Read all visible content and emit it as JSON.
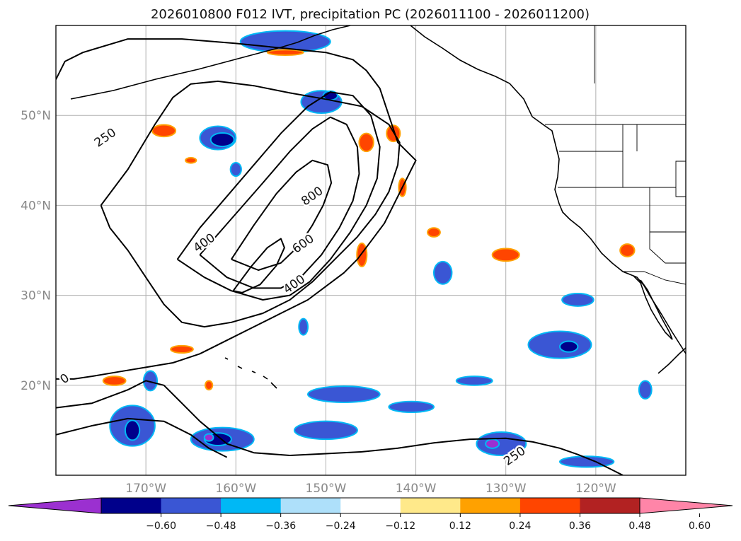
{
  "title": "2026010800 F012 IVT, precipitation PC (2026011100 - 2026011200)",
  "chart_data": {
    "type": "contour_map",
    "title": "2026010800 F012 IVT, precipitation PC (2026011100 - 2026011200)",
    "xlim": [
      -180,
      -110
    ],
    "ylim": [
      10,
      60
    ],
    "x_ticks": [
      {
        "lon": -170,
        "label": "170°W"
      },
      {
        "lon": -160,
        "label": "160°W"
      },
      {
        "lon": -150,
        "label": "150°W"
      },
      {
        "lon": -140,
        "label": "140°W"
      },
      {
        "lon": -130,
        "label": "130°W"
      },
      {
        "lon": -120,
        "label": "120°W"
      }
    ],
    "y_ticks": [
      {
        "lat": 20,
        "label": "20°N"
      },
      {
        "lat": 30,
        "label": "30°N"
      },
      {
        "lat": 40,
        "label": "40°N"
      },
      {
        "lat": 50,
        "label": "50°N"
      }
    ],
    "grid": true,
    "ivt_contour_levels": [
      250,
      400,
      600,
      800
    ],
    "ivt_contour_labels": [
      {
        "text": "250",
        "lon": -174.5,
        "lat": 47.5
      },
      {
        "text": "400",
        "lon": -163.5,
        "lat": 35.8
      },
      {
        "text": "600",
        "lon": -152.5,
        "lat": 35.7
      },
      {
        "text": "800",
        "lon": -151.5,
        "lat": 41.0
      },
      {
        "text": "400",
        "lon": -153.5,
        "lat": 31.2
      },
      {
        "text": "250",
        "lon": -129.0,
        "lat": 12.1
      },
      {
        "text": "0",
        "lon": -179.0,
        "lat": 20.7
      }
    ],
    "colorbar": {
      "ticks": [
        "−0.60",
        "−0.48",
        "−0.36",
        "−0.24",
        "−0.12",
        "0.12",
        "0.24",
        "0.36",
        "0.48",
        "0.60"
      ],
      "colors": [
        "#9b30d0",
        "#00008b",
        "#3a56d4",
        "#00b8f5",
        "#aee0fa",
        "#ffffff",
        "#ffe98a",
        "#ffa100",
        "#ff4500",
        "#b22222",
        "#ff85a8"
      ],
      "extend": "both"
    },
    "contours": [
      {
        "level": 250,
        "points": [
          [
            -180,
            54
          ],
          [
            -179,
            56
          ],
          [
            -177,
            57
          ],
          [
            -172,
            58.5
          ],
          [
            -166,
            58.5
          ],
          [
            -160,
            58
          ],
          [
            -155,
            57.5
          ],
          [
            -150,
            57
          ],
          [
            -147,
            56.2
          ],
          [
            -145.5,
            55
          ],
          [
            -144,
            53
          ],
          [
            -143,
            50
          ],
          [
            -142,
            47
          ],
          [
            -140,
            45
          ],
          [
            -140.5,
            44
          ],
          [
            -141.5,
            42
          ],
          [
            -142.5,
            40
          ],
          [
            -143.5,
            38
          ],
          [
            -145,
            36
          ],
          [
            -146.5,
            34
          ],
          [
            -148,
            32.5
          ],
          [
            -150,
            31
          ],
          [
            -152,
            29.5
          ],
          [
            -155,
            28
          ],
          [
            -158,
            26.5
          ],
          [
            -161,
            25
          ],
          [
            -164,
            23.5
          ],
          [
            -167,
            22.5
          ],
          [
            -170,
            22
          ],
          [
            -173,
            21.5
          ],
          [
            -176,
            21
          ],
          [
            -178,
            20.7
          ],
          [
            -180,
            20.7
          ]
        ]
      },
      {
        "level": 250,
        "points": [
          [
            -180,
            17.5
          ],
          [
            -176,
            18
          ],
          [
            -172,
            19.5
          ],
          [
            -170,
            20.5
          ],
          [
            -168,
            20
          ],
          [
            -166,
            18
          ],
          [
            -164,
            16
          ],
          [
            -161,
            13.5
          ],
          [
            -158,
            12.5
          ],
          [
            -154,
            12.2
          ],
          [
            -150,
            12.4
          ],
          [
            -146,
            12.6
          ],
          [
            -142,
            13
          ],
          [
            -138,
            13.6
          ],
          [
            -134,
            14
          ],
          [
            -130,
            14.1
          ],
          [
            -127,
            13.7
          ],
          [
            -124,
            13
          ],
          [
            -122,
            12.3
          ],
          [
            -120,
            11.5
          ],
          [
            -118,
            10.5
          ],
          [
            -117,
            10
          ]
        ]
      },
      {
        "level": 250,
        "points": [
          [
            -180,
            14.5
          ],
          [
            -176,
            15.5
          ],
          [
            -172,
            16.3
          ],
          [
            -168,
            16
          ],
          [
            -165,
            14.5
          ],
          [
            -163,
            13
          ],
          [
            -161,
            12
          ]
        ]
      },
      {
        "level": 400,
        "points": [
          [
            -175,
            40
          ],
          [
            -172,
            44
          ],
          [
            -169,
            49
          ],
          [
            -167,
            52
          ],
          [
            -165,
            53.5
          ],
          [
            -162,
            53.8
          ],
          [
            -158,
            53.3
          ],
          [
            -154,
            52.5
          ],
          [
            -150,
            51.8
          ],
          [
            -146,
            51
          ],
          [
            -143,
            49
          ],
          [
            -141.8,
            47
          ],
          [
            -142,
            44.5
          ],
          [
            -143,
            41.5
          ],
          [
            -144.5,
            39
          ],
          [
            -146.5,
            36.5
          ],
          [
            -149,
            34
          ],
          [
            -151.5,
            31.5
          ],
          [
            -154,
            29.5
          ],
          [
            -157,
            28
          ],
          [
            -160.5,
            27
          ],
          [
            -163.5,
            26.5
          ],
          [
            -166,
            27
          ],
          [
            -168,
            29
          ],
          [
            -170,
            32
          ],
          [
            -172,
            35
          ],
          [
            -174,
            37.5
          ],
          [
            -175,
            40
          ]
        ]
      },
      {
        "level": 400,
        "points": [
          [
            -166.5,
            34
          ],
          [
            -164,
            37.5
          ],
          [
            -161,
            41
          ],
          [
            -158,
            44.5
          ],
          [
            -155,
            48
          ],
          [
            -152,
            51
          ],
          [
            -149.5,
            52.6
          ],
          [
            -147,
            52.2
          ],
          [
            -145,
            50
          ],
          [
            -144,
            46.5
          ],
          [
            -144.3,
            43
          ],
          [
            -145.5,
            40
          ],
          [
            -147.3,
            37
          ],
          [
            -149.5,
            34
          ],
          [
            -151.8,
            31.5
          ],
          [
            -154,
            30
          ],
          [
            -157,
            29.5
          ],
          [
            -160.5,
            30.5
          ],
          [
            -163.5,
            32
          ],
          [
            -166.5,
            34
          ]
        ]
      },
      {
        "level": 600,
        "points": [
          [
            -164,
            34.5
          ],
          [
            -160.5,
            38.5
          ],
          [
            -157,
            42.5
          ],
          [
            -154,
            46
          ],
          [
            -151.5,
            48.5
          ],
          [
            -149.5,
            49.8
          ],
          [
            -147.7,
            49
          ],
          [
            -146.5,
            46.5
          ],
          [
            -146.3,
            43.5
          ],
          [
            -147,
            40.5
          ],
          [
            -148.5,
            37.5
          ],
          [
            -150.5,
            34.5
          ],
          [
            -152.8,
            32
          ],
          [
            -155,
            30.8
          ],
          [
            -158,
            30.8
          ],
          [
            -161,
            32
          ],
          [
            -164,
            34.5
          ]
        ]
      },
      {
        "level": 800,
        "points": [
          [
            -160.5,
            34
          ],
          [
            -158,
            37.8
          ],
          [
            -155.5,
            41.3
          ],
          [
            -153.3,
            43.7
          ],
          [
            -151.5,
            45
          ],
          [
            -149.8,
            44.5
          ],
          [
            -149.4,
            42.5
          ],
          [
            -150.3,
            40
          ],
          [
            -151.5,
            37.8
          ],
          [
            -153,
            35.5
          ],
          [
            -155,
            33.6
          ],
          [
            -157.5,
            32.8
          ],
          [
            -160.5,
            34
          ]
        ]
      },
      {
        "level": 800,
        "points": [
          [
            -160.3,
            30.5
          ],
          [
            -158.3,
            33.2
          ],
          [
            -156.5,
            35.3
          ],
          [
            -155,
            36.3
          ],
          [
            -154.6,
            35.3
          ],
          [
            -155.5,
            33.3
          ],
          [
            -157.3,
            31.2
          ],
          [
            -159.3,
            30.3
          ],
          [
            -160.3,
            30.5
          ]
        ]
      }
    ],
    "precip_pc_fields": [
      {
        "color": "#3a56d4",
        "lon": -162.0,
        "lat": 47.5,
        "w": 4.0,
        "h": 2.6
      },
      {
        "color": "#00008b",
        "lon": -161.5,
        "lat": 47.3,
        "w": 2.6,
        "h": 1.5
      },
      {
        "color": "#3a56d4",
        "lon": -150.5,
        "lat": 51.5,
        "w": 4.5,
        "h": 2.5
      },
      {
        "color": "#00008b",
        "lon": -149.5,
        "lat": 52.2,
        "w": 1.6,
        "h": 1.0
      },
      {
        "color": "#3a56d4",
        "lon": -154.5,
        "lat": 58.2,
        "w": 10.0,
        "h": 2.4
      },
      {
        "color": "#3a56d4",
        "lon": -160.0,
        "lat": 44.0,
        "w": 1.2,
        "h": 1.5
      },
      {
        "color": "#3a56d4",
        "lon": -171.5,
        "lat": 15.5,
        "w": 5.0,
        "h": 4.5
      },
      {
        "color": "#00008b",
        "lon": -171.5,
        "lat": 15.0,
        "w": 1.6,
        "h": 2.2
      },
      {
        "color": "#3a56d4",
        "lon": -161.5,
        "lat": 14.0,
        "w": 7.0,
        "h": 2.6
      },
      {
        "color": "#00008b",
        "lon": -162.0,
        "lat": 14.0,
        "w": 3.0,
        "h": 1.4
      },
      {
        "color": "#9b30d0",
        "lon": -163.0,
        "lat": 14.2,
        "w": 1.0,
        "h": 0.8
      },
      {
        "color": "#3a56d4",
        "lon": -150.0,
        "lat": 15.0,
        "w": 7.0,
        "h": 2.0
      },
      {
        "color": "#3a56d4",
        "lon": -148.0,
        "lat": 19.0,
        "w": 8.0,
        "h": 1.8
      },
      {
        "color": "#3a56d4",
        "lon": -140.5,
        "lat": 17.6,
        "w": 5.0,
        "h": 1.2
      },
      {
        "color": "#3a56d4",
        "lon": -124.0,
        "lat": 24.5,
        "w": 7.0,
        "h": 3.0
      },
      {
        "color": "#00008b",
        "lon": -123.0,
        "lat": 24.3,
        "w": 2.0,
        "h": 1.2
      },
      {
        "color": "#3a56d4",
        "lon": -122.0,
        "lat": 29.5,
        "w": 3.5,
        "h": 1.4
      },
      {
        "color": "#3a56d4",
        "lon": -130.5,
        "lat": 13.5,
        "w": 5.5,
        "h": 2.6
      },
      {
        "color": "#9b30d0",
        "lon": -131.5,
        "lat": 13.5,
        "w": 1.5,
        "h": 1.0
      },
      {
        "color": "#3a56d4",
        "lon": -121.0,
        "lat": 11.5,
        "w": 6.0,
        "h": 1.2
      },
      {
        "color": "#3a56d4",
        "lon": -137.0,
        "lat": 32.5,
        "w": 2.0,
        "h": 2.5
      },
      {
        "color": "#3a56d4",
        "lon": -152.5,
        "lat": 26.5,
        "w": 1.0,
        "h": 1.8
      },
      {
        "color": "#3a56d4",
        "lon": -114.5,
        "lat": 19.5,
        "w": 1.4,
        "h": 2.0
      },
      {
        "color": "#3a56d4",
        "lon": -169.5,
        "lat": 20.5,
        "w": 1.5,
        "h": 2.2
      },
      {
        "color": "#3a56d4",
        "lon": -133.5,
        "lat": 20.5,
        "w": 4.0,
        "h": 1.0
      },
      {
        "color": "#ff4500",
        "lon": -168.0,
        "lat": 48.3,
        "w": 2.6,
        "h": 1.3
      },
      {
        "color": "#ff4500",
        "lon": -145.5,
        "lat": 47.0,
        "w": 1.6,
        "h": 2.0
      },
      {
        "color": "#ff4500",
        "lon": -142.5,
        "lat": 48.0,
        "w": 1.5,
        "h": 1.8
      },
      {
        "color": "#ff4500",
        "lon": -146.0,
        "lat": 34.5,
        "w": 1.1,
        "h": 2.6
      },
      {
        "color": "#ff4500",
        "lon": -141.5,
        "lat": 42.0,
        "w": 0.8,
        "h": 2.0
      },
      {
        "color": "#ff4500",
        "lon": -130.0,
        "lat": 34.5,
        "w": 3.0,
        "h": 1.4
      },
      {
        "color": "#ff4500",
        "lon": -116.5,
        "lat": 35.0,
        "w": 1.6,
        "h": 1.4
      },
      {
        "color": "#ff4500",
        "lon": -154.5,
        "lat": 57.0,
        "w": 4.0,
        "h": 0.6
      },
      {
        "color": "#ff4500",
        "lon": -165.0,
        "lat": 45.0,
        "w": 1.2,
        "h": 0.6
      },
      {
        "color": "#ff4500",
        "lon": -166.0,
        "lat": 24.0,
        "w": 2.5,
        "h": 0.8
      },
      {
        "color": "#ff4500",
        "lon": -163.0,
        "lat": 20.0,
        "w": 0.8,
        "h": 1.0
      },
      {
        "color": "#ff4500",
        "lon": -173.5,
        "lat": 20.5,
        "w": 2.5,
        "h": 1.0
      },
      {
        "color": "#ff4500",
        "lon": -138.0,
        "lat": 37.0,
        "w": 1.4,
        "h": 1.0
      }
    ]
  }
}
